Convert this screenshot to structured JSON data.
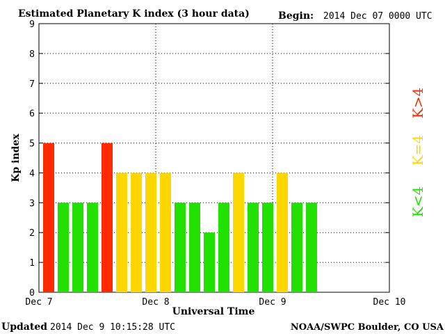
{
  "header": {
    "title": "Estimated Planetary K index (3 hour data)",
    "begin_label": "Begin:",
    "begin_value": "2014 Dec 07 0000 UTC"
  },
  "footer": {
    "updated_label": "Updated",
    "updated_value": "2014 Dec  9 10:15:28 UTC",
    "source": "NOAA/SWPC Boulder, CO USA"
  },
  "legend": [
    {
      "label": "K>4",
      "color": "#ff2a00"
    },
    {
      "label": "K=4",
      "color": "#ffd700"
    },
    {
      "label": "K<4",
      "color": "#22e000"
    }
  ],
  "chart_data": {
    "type": "bar",
    "title": "Estimated Planetary K index (3 hour data)",
    "xlabel": "Universal Time",
    "ylabel": "Kp index",
    "ylim": [
      0,
      9
    ],
    "yticks": [
      "0",
      "1",
      "2",
      "3",
      "4",
      "5",
      "6",
      "7",
      "8",
      "9"
    ],
    "xticks": [
      "Dec 7",
      "Dec 8",
      "Dec 9",
      "Dec 10"
    ],
    "slots_total": 24,
    "values": [
      5,
      3,
      3,
      3,
      5,
      4,
      4,
      4,
      4,
      3,
      3,
      2,
      3,
      4,
      3,
      3,
      4,
      3,
      3
    ],
    "colors": {
      "high": "#ff2a00",
      "equal": "#ffd700",
      "low": "#22e000"
    },
    "grid": true,
    "legend_position": "right"
  }
}
